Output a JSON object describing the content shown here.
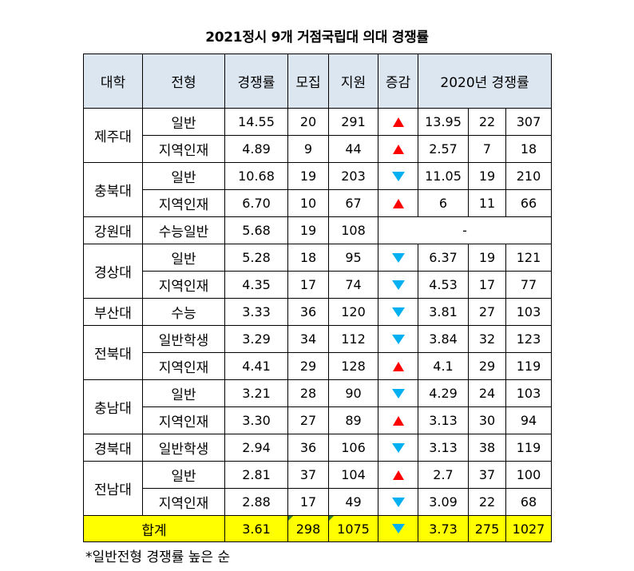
{
  "title": "2021정시 9개 거점국립대 의대 경쟁률",
  "headers": {
    "univ": "대학",
    "type": "전형",
    "ratio": "경쟁률",
    "quota": "모집",
    "applicants": "지원",
    "change": "증감",
    "prev": "2020년 경쟁률"
  },
  "colors": {
    "header_bg": "#dce6f1",
    "total_bg": "#ffff00",
    "up": "#ff0000",
    "down": "#00b0f0"
  },
  "rows": [
    {
      "univ": "제주대",
      "type": "일반",
      "ratio": "14.55",
      "quota": "20",
      "applicants": "291",
      "change": "up",
      "prev_ratio": "13.95",
      "prev_quota": "22",
      "prev_applicants": "307"
    },
    {
      "univ": "",
      "type": "지역인재",
      "ratio": "4.89",
      "quota": "9",
      "applicants": "44",
      "change": "up",
      "prev_ratio": "2.57",
      "prev_quota": "7",
      "prev_applicants": "18"
    },
    {
      "univ": "충북대",
      "type": "일반",
      "ratio": "10.68",
      "quota": "19",
      "applicants": "203",
      "change": "down",
      "prev_ratio": "11.05",
      "prev_quota": "19",
      "prev_applicants": "210"
    },
    {
      "univ": "",
      "type": "지역인재",
      "ratio": "6.70",
      "quota": "10",
      "applicants": "67",
      "change": "up",
      "prev_ratio": "6",
      "prev_quota": "11",
      "prev_applicants": "66"
    },
    {
      "univ": "강원대",
      "type": "수능일반",
      "ratio": "5.68",
      "quota": "19",
      "applicants": "108",
      "change": "",
      "prev_none": "-"
    },
    {
      "univ": "경상대",
      "type": "일반",
      "ratio": "5.28",
      "quota": "18",
      "applicants": "95",
      "change": "down",
      "prev_ratio": "6.37",
      "prev_quota": "19",
      "prev_applicants": "121"
    },
    {
      "univ": "",
      "type": "지역인재",
      "ratio": "4.35",
      "quota": "17",
      "applicants": "74",
      "change": "down",
      "prev_ratio": "4.53",
      "prev_quota": "17",
      "prev_applicants": "77"
    },
    {
      "univ": "부산대",
      "type": "수능",
      "ratio": "3.33",
      "quota": "36",
      "applicants": "120",
      "change": "down",
      "prev_ratio": "3.81",
      "prev_quota": "27",
      "prev_applicants": "103"
    },
    {
      "univ": "전북대",
      "type": "일반학생",
      "ratio": "3.29",
      "quota": "34",
      "applicants": "112",
      "change": "down",
      "prev_ratio": "3.84",
      "prev_quota": "32",
      "prev_applicants": "123"
    },
    {
      "univ": "",
      "type": "지역인재",
      "ratio": "4.41",
      "quota": "29",
      "applicants": "128",
      "change": "up",
      "prev_ratio": "4.1",
      "prev_quota": "29",
      "prev_applicants": "119"
    },
    {
      "univ": "충남대",
      "type": "일반",
      "ratio": "3.21",
      "quota": "28",
      "applicants": "90",
      "change": "down",
      "prev_ratio": "4.29",
      "prev_quota": "24",
      "prev_applicants": "103"
    },
    {
      "univ": "",
      "type": "지역인재",
      "ratio": "3.30",
      "quota": "27",
      "applicants": "89",
      "change": "up",
      "prev_ratio": "3.13",
      "prev_quota": "30",
      "prev_applicants": "94"
    },
    {
      "univ": "경북대",
      "type": "일반학생",
      "ratio": "2.94",
      "quota": "36",
      "applicants": "106",
      "change": "down",
      "prev_ratio": "3.13",
      "prev_quota": "38",
      "prev_applicants": "119"
    },
    {
      "univ": "전남대",
      "type": "일반",
      "ratio": "2.81",
      "quota": "37",
      "applicants": "104",
      "change": "up",
      "prev_ratio": "2.7",
      "prev_quota": "37",
      "prev_applicants": "100"
    },
    {
      "univ": "",
      "type": "지역인재",
      "ratio": "2.88",
      "quota": "17",
      "applicants": "49",
      "change": "down",
      "prev_ratio": "3.09",
      "prev_quota": "22",
      "prev_applicants": "68"
    }
  ],
  "total": {
    "label": "합계",
    "ratio": "3.61",
    "quota": "298",
    "applicants": "1075",
    "change": "down",
    "prev_ratio": "3.73",
    "prev_quota": "275",
    "prev_applicants": "1027"
  },
  "footnote": "*일반전형 경쟁률 높은 순"
}
